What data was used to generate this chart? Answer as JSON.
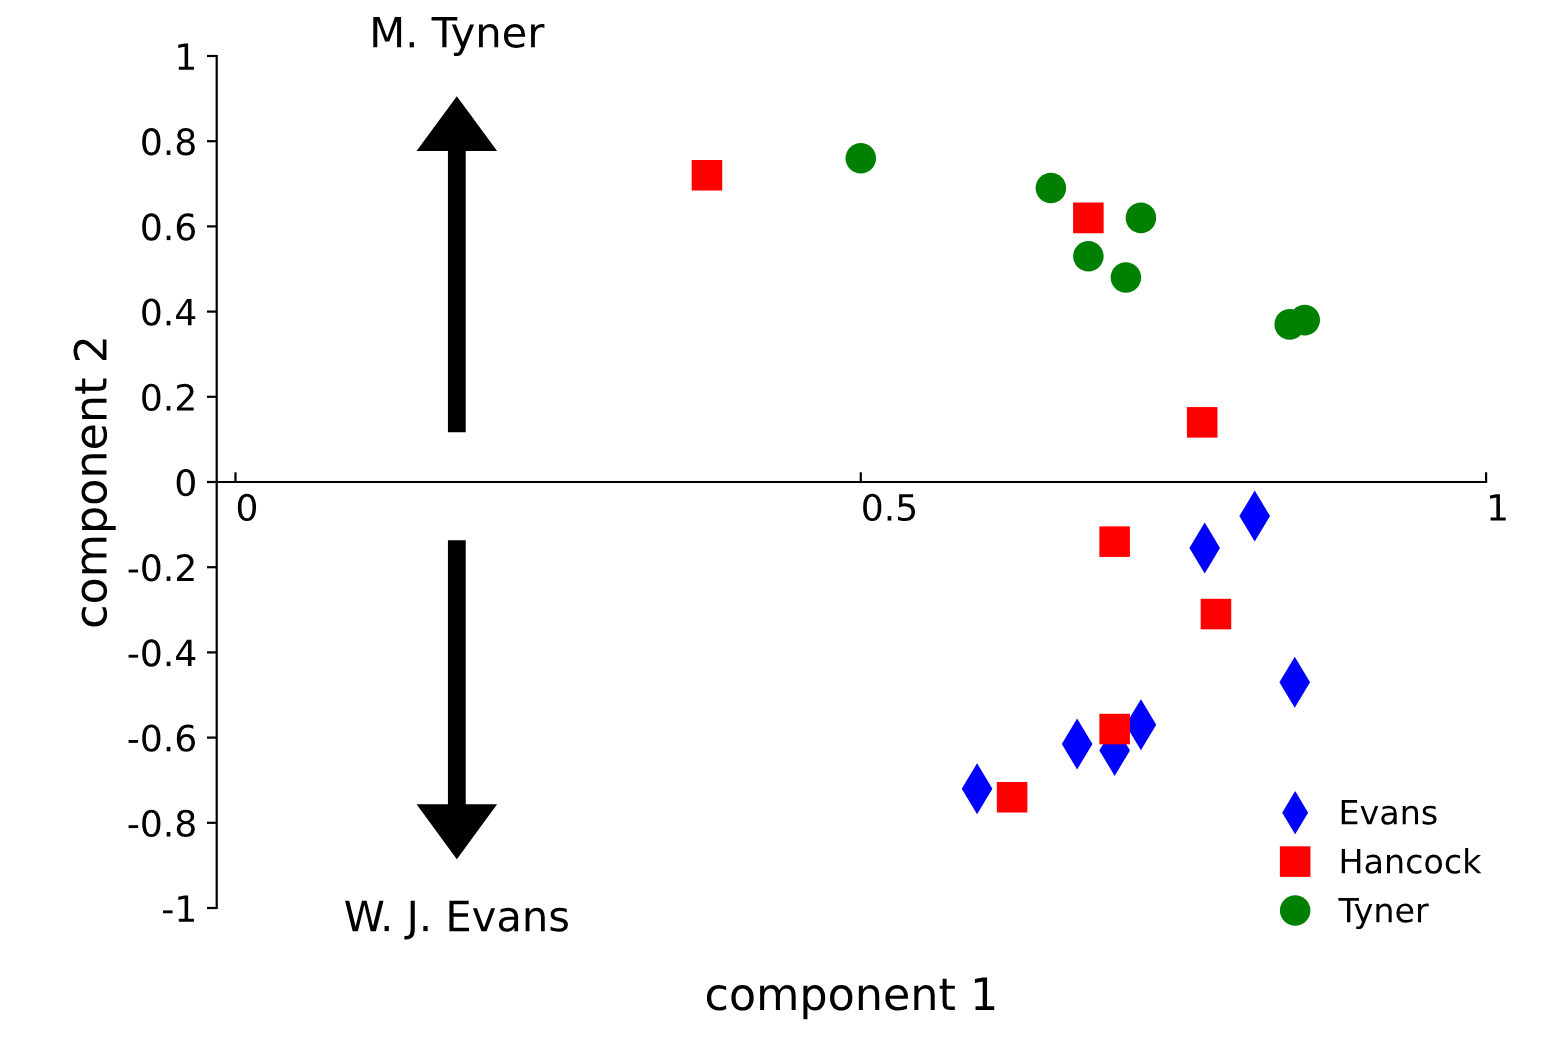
{
  "chart_data": {
    "type": "scatter",
    "xlabel": "component 1",
    "ylabel": "component 2",
    "xlim": [
      -0.015,
      1
    ],
    "xticks": [
      0,
      0.5,
      1
    ],
    "ylim": [
      -1,
      1
    ],
    "yticks": [
      -1,
      -0.8,
      -0.6,
      -0.4,
      -0.2,
      0,
      0.2,
      0.4,
      0.6,
      0.8,
      1
    ],
    "grid": false,
    "legend": "bottom right",
    "annotations": [
      "M. Tyner",
      "W. J. Evans"
    ],
    "series": [
      {
        "name": "Evans",
        "color": "#0000ff",
        "marker": "diamond",
        "x": [
          0.815,
          0.775,
          0.847,
          0.724,
          0.703,
          0.673,
          0.593
        ],
        "values": [
          -0.08,
          -0.155,
          -0.47,
          -0.57,
          -0.63,
          -0.615,
          -0.72
        ]
      },
      {
        "name": "Hancock",
        "color": "#ff0000",
        "marker": "square",
        "x": [
          0.377,
          0.682,
          0.773,
          0.703,
          0.784,
          0.703,
          0.621
        ],
        "values": [
          0.72,
          0.62,
          0.14,
          -0.14,
          -0.31,
          -0.58,
          -0.74
        ]
      },
      {
        "name": "Tyner",
        "color": "#008000",
        "marker": "circle",
        "x": [
          0.5,
          0.652,
          0.724,
          0.682,
          0.712,
          0.843,
          0.855
        ],
        "values": [
          0.76,
          0.69,
          0.62,
          0.53,
          0.48,
          0.37,
          0.38
        ]
      }
    ]
  }
}
